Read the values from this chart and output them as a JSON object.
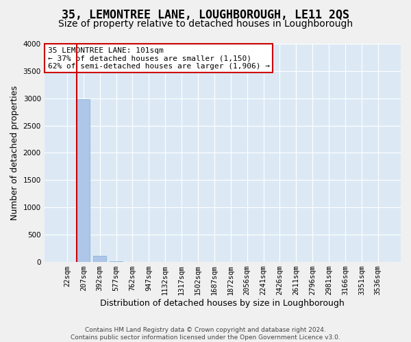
{
  "title": "35, LEMONTREE LANE, LOUGHBOROUGH, LE11 2QS",
  "subtitle": "Size of property relative to detached houses in Loughborough",
  "xlabel": "Distribution of detached houses by size in Loughborough",
  "ylabel": "Number of detached properties",
  "footer_line1": "Contains HM Land Registry data © Crown copyright and database right 2024.",
  "footer_line2": "Contains public sector information licensed under the Open Government Licence v3.0.",
  "bin_labels": [
    "22sqm",
    "207sqm",
    "392sqm",
    "577sqm",
    "762sqm",
    "947sqm",
    "1132sqm",
    "1317sqm",
    "1502sqm",
    "1687sqm",
    "1872sqm",
    "2056sqm",
    "2241sqm",
    "2426sqm",
    "2611sqm",
    "2796sqm",
    "2981sqm",
    "3166sqm",
    "3351sqm",
    "3536sqm"
  ],
  "bar_heights": [
    3,
    2980,
    105,
    8,
    3,
    2,
    1,
    1,
    0,
    0,
    0,
    0,
    1,
    0,
    0,
    0,
    0,
    0,
    0,
    0
  ],
  "bar_color": "#aec6e8",
  "bar_edge_color": "#7aadd4",
  "ylim": [
    0,
    4000
  ],
  "yticks": [
    0,
    500,
    1000,
    1500,
    2000,
    2500,
    3000,
    3500,
    4000
  ],
  "property_label": "35 LEMONTREE LANE: 101sqm",
  "pct_smaller": 37,
  "pct_smaller_count": 1150,
  "pct_larger": 62,
  "pct_larger_count": 1906,
  "vline_x_index": 1,
  "annotation_box_color": "#cc0000",
  "bg_color": "#dce9f5",
  "grid_color": "#ffffff",
  "fig_bg_color": "#f0f0f0",
  "title_fontsize": 12,
  "subtitle_fontsize": 10,
  "axis_label_fontsize": 9,
  "tick_fontsize": 7.5,
  "ann_fontsize": 8
}
